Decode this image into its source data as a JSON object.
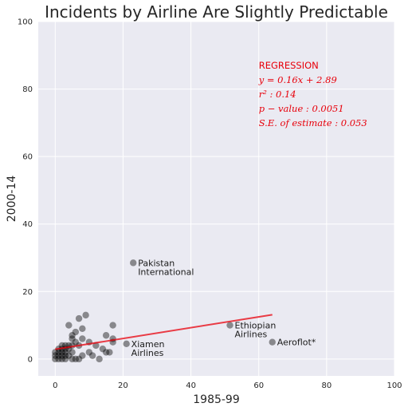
{
  "chart_data": {
    "type": "scatter",
    "title": "Incidents by Airline Are Slightly Predictable",
    "xlabel": "1985-99",
    "ylabel": "2000-14",
    "xlim": [
      -5,
      100
    ],
    "ylim": [
      -5,
      100
    ],
    "xticks": [
      0,
      20,
      40,
      60,
      80,
      100
    ],
    "yticks": [
      0,
      20,
      40,
      60,
      80,
      100
    ],
    "grid": true,
    "colors": {
      "background": "#EAEAF2",
      "grid": "#FFFFFF",
      "point": "#000000",
      "regression": "#E8000B"
    },
    "points": [
      {
        "x": 0,
        "y": 0
      },
      {
        "x": 0,
        "y": 1
      },
      {
        "x": 0,
        "y": 2
      },
      {
        "x": 1,
        "y": 0
      },
      {
        "x": 1,
        "y": 1
      },
      {
        "x": 1,
        "y": 2
      },
      {
        "x": 1,
        "y": 3
      },
      {
        "x": 2,
        "y": 0
      },
      {
        "x": 2,
        "y": 1
      },
      {
        "x": 2,
        "y": 2
      },
      {
        "x": 2,
        "y": 3
      },
      {
        "x": 2,
        "y": 4
      },
      {
        "x": 3,
        "y": 0
      },
      {
        "x": 3,
        "y": 1
      },
      {
        "x": 3,
        "y": 2
      },
      {
        "x": 3,
        "y": 3
      },
      {
        "x": 3,
        "y": 4
      },
      {
        "x": 4,
        "y": 1
      },
      {
        "x": 4,
        "y": 3
      },
      {
        "x": 4,
        "y": 4
      },
      {
        "x": 4,
        "y": 10
      },
      {
        "x": 5,
        "y": 0
      },
      {
        "x": 5,
        "y": 2
      },
      {
        "x": 5,
        "y": 4
      },
      {
        "x": 5,
        "y": 6
      },
      {
        "x": 5,
        "y": 7
      },
      {
        "x": 6,
        "y": 0
      },
      {
        "x": 6,
        "y": 5
      },
      {
        "x": 6,
        "y": 8
      },
      {
        "x": 7,
        "y": 0
      },
      {
        "x": 7,
        "y": 4
      },
      {
        "x": 7,
        "y": 12
      },
      {
        "x": 8,
        "y": 1
      },
      {
        "x": 8,
        "y": 6
      },
      {
        "x": 8,
        "y": 9
      },
      {
        "x": 9,
        "y": 13
      },
      {
        "x": 10,
        "y": 2
      },
      {
        "x": 10,
        "y": 5
      },
      {
        "x": 11,
        "y": 1
      },
      {
        "x": 12,
        "y": 4
      },
      {
        "x": 13,
        "y": 0
      },
      {
        "x": 14,
        "y": 3
      },
      {
        "x": 15,
        "y": 7
      },
      {
        "x": 15,
        "y": 2
      },
      {
        "x": 16,
        "y": 2
      },
      {
        "x": 17,
        "y": 6
      },
      {
        "x": 17,
        "y": 10
      },
      {
        "x": 17,
        "y": 5
      },
      {
        "x": 21,
        "y": 4.5
      },
      {
        "x": 23,
        "y": 28.5
      },
      {
        "x": 51.5,
        "y": 10
      },
      {
        "x": 64,
        "y": 5
      }
    ],
    "annotations": [
      {
        "x": 23,
        "y": 28.5,
        "lines": [
          "Pakistan",
          "International"
        ]
      },
      {
        "x": 51.5,
        "y": 10,
        "lines": [
          "Ethiopian",
          "Airlines"
        ]
      },
      {
        "x": 21,
        "y": 4.5,
        "lines": [
          "Xiamen",
          "Airlines"
        ]
      },
      {
        "x": 64,
        "y": 5,
        "lines": [
          "Aeroflot*"
        ]
      }
    ],
    "regression": {
      "slope": 0.16,
      "intercept": 2.89,
      "x_range": [
        0,
        64
      ],
      "text": {
        "heading": "REGRESSION",
        "equation": "y = 0.16x + 2.89",
        "r2": "r² : 0.14",
        "pvalue": "p − value : 0.0051",
        "se": "S.E. of estimate : 0.053"
      },
      "text_at": {
        "x": 60,
        "y": 86
      }
    }
  }
}
